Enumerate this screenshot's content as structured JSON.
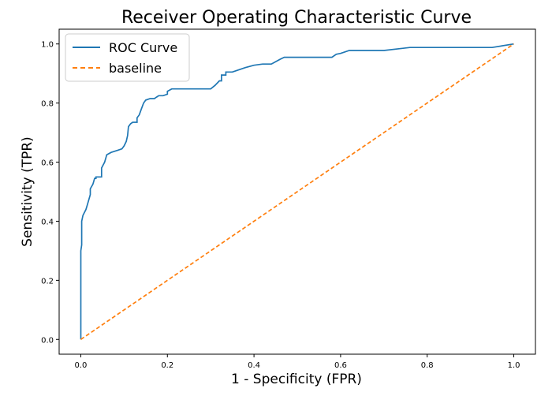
{
  "chart_data": {
    "type": "line",
    "title": "Receiver Operating Characteristic Curve",
    "xlabel": "1 - Specificity (FPR)",
    "ylabel": "Sensitivity (TPR)",
    "xlim": [
      -0.05,
      1.05
    ],
    "ylim": [
      -0.05,
      1.05
    ],
    "xticks": [
      "0.0",
      "0.2",
      "0.4",
      "0.6",
      "0.8",
      "1.0"
    ],
    "yticks": [
      "0.0",
      "0.2",
      "0.4",
      "0.6",
      "0.8",
      "1.0"
    ],
    "grid": false,
    "legend_position": "upper-left",
    "series": [
      {
        "name": "ROC Curve",
        "color": "#1f77b4",
        "linestyle": "solid",
        "x": [
          0.0,
          0.0,
          0.002,
          0.002,
          0.005,
          0.005,
          0.012,
          0.015,
          0.015,
          0.022,
          0.022,
          0.028,
          0.032,
          0.035,
          0.035,
          0.048,
          0.048,
          0.055,
          0.06,
          0.07,
          0.085,
          0.095,
          0.1,
          0.105,
          0.108,
          0.11,
          0.115,
          0.12,
          0.13,
          0.13,
          0.135,
          0.14,
          0.145,
          0.15,
          0.16,
          0.17,
          0.175,
          0.18,
          0.19,
          0.2,
          0.2,
          0.21,
          0.25,
          0.3,
          0.31,
          0.32,
          0.325,
          0.325,
          0.335,
          0.335,
          0.35,
          0.36,
          0.38,
          0.4,
          0.42,
          0.44,
          0.45,
          0.46,
          0.47,
          0.48,
          0.58,
          0.59,
          0.6,
          0.62,
          0.7,
          0.76,
          0.95,
          1.0
        ],
        "y": [
          0.0,
          0.3,
          0.32,
          0.4,
          0.42,
          0.42,
          0.44,
          0.455,
          0.455,
          0.49,
          0.51,
          0.525,
          0.545,
          0.545,
          0.55,
          0.55,
          0.58,
          0.6,
          0.625,
          0.633,
          0.64,
          0.645,
          0.655,
          0.67,
          0.69,
          0.72,
          0.73,
          0.735,
          0.735,
          0.75,
          0.76,
          0.78,
          0.8,
          0.81,
          0.815,
          0.815,
          0.82,
          0.825,
          0.825,
          0.83,
          0.84,
          0.848,
          0.848,
          0.848,
          0.86,
          0.875,
          0.875,
          0.895,
          0.895,
          0.905,
          0.905,
          0.91,
          0.92,
          0.928,
          0.932,
          0.932,
          0.94,
          0.948,
          0.955,
          0.955,
          0.955,
          0.965,
          0.968,
          0.978,
          0.978,
          0.988,
          0.988,
          1.0
        ]
      },
      {
        "name": "baseline",
        "color": "#ff7f0e",
        "linestyle": "dashed",
        "x": [
          0.0,
          1.0
        ],
        "y": [
          0.0,
          1.0
        ]
      }
    ]
  }
}
